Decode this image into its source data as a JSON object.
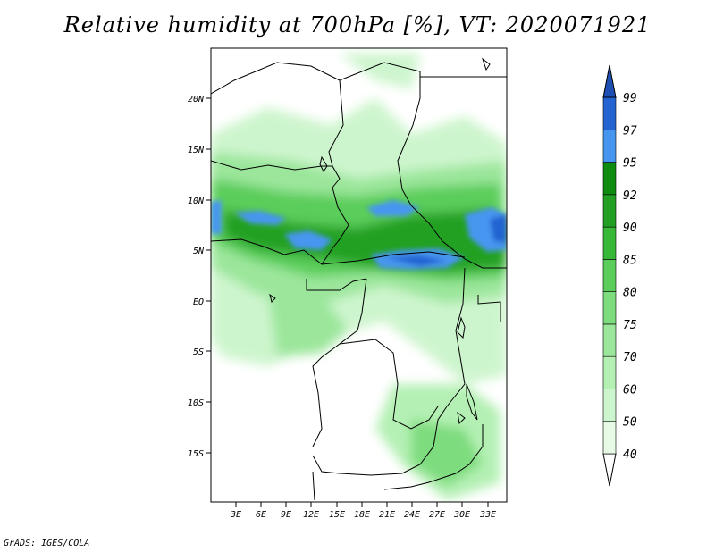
{
  "title": "Relative humidity at 700hPa [%], VT: 2020071921",
  "credit": "GrADS: IGES/COLA",
  "map": {
    "lat_labels": [
      "20N",
      "15N",
      "10N",
      "5N",
      "EQ",
      "5S",
      "10S",
      "15S"
    ],
    "lon_labels": [
      "3E",
      "6E",
      "9E",
      "12E",
      "15E",
      "18E",
      "21E",
      "24E",
      "27E",
      "30E",
      "33E"
    ]
  },
  "colorbar": {
    "levels": [
      "40",
      "50",
      "60",
      "70",
      "75",
      "80",
      "85",
      "90",
      "92",
      "95",
      "97",
      "99"
    ],
    "colors": [
      "#ffffff",
      "#e6fae6",
      "#cdf5cd",
      "#b4f0b4",
      "#9be69b",
      "#7ddc7d",
      "#5acd5a",
      "#37b937",
      "#23a023",
      "#0f8c0f",
      "#4696f0",
      "#2364d2",
      "#1e50b4"
    ]
  }
}
